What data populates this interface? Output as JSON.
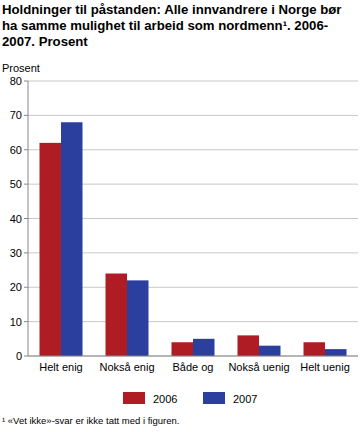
{
  "chart_data": {
    "type": "bar",
    "title": "Holdninger til påstanden: Alle innvandrere i Norge bør ha samme mulighet til arbeid som nordmenn¹. 2006-2007. Prosent",
    "y_label": "Prosent",
    "footnote": "¹ «Vet ikke»-svar er ikke tatt med i figuren.",
    "categories": [
      "Helt enig",
      "Nokså enig",
      "Både og",
      "Nokså uenig",
      "Helt uenig"
    ],
    "series": [
      {
        "name": "2006",
        "color": "#b01c24",
        "values": [
          62,
          24,
          4,
          6,
          4
        ]
      },
      {
        "name": "2007",
        "color": "#2b3f9e",
        "values": [
          68,
          22,
          5,
          3,
          2
        ]
      }
    ],
    "ylim": [
      0,
      80
    ],
    "yticks": [
      0,
      10,
      20,
      30,
      40,
      50,
      60,
      70,
      80
    ],
    "grid": true,
    "legend": "bottom"
  }
}
